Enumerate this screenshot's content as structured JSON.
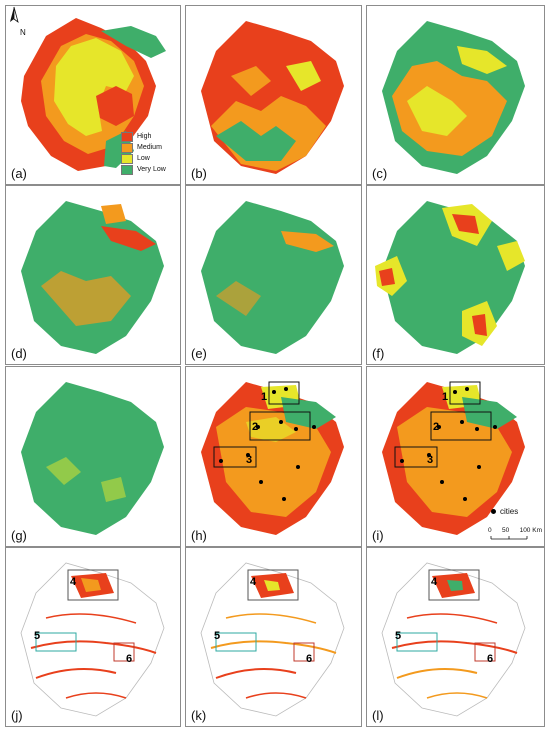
{
  "panels": [
    {
      "id": "a",
      "label": "(a)"
    },
    {
      "id": "b",
      "label": "(b)"
    },
    {
      "id": "c",
      "label": "(c)"
    },
    {
      "id": "d",
      "label": "(d)"
    },
    {
      "id": "e",
      "label": "(e)"
    },
    {
      "id": "f",
      "label": "(f)"
    },
    {
      "id": "g",
      "label": "(g)"
    },
    {
      "id": "h",
      "label": "(h)"
    },
    {
      "id": "i",
      "label": "(i)"
    },
    {
      "id": "j",
      "label": "(j)"
    },
    {
      "id": "k",
      "label": "(k)"
    },
    {
      "id": "l",
      "label": "(l)"
    }
  ],
  "legend": {
    "items": [
      {
        "label": "High",
        "color": "#e8401c"
      },
      {
        "label": "Medium",
        "color": "#f39a1e"
      },
      {
        "label": "Low",
        "color": "#e6e62a"
      },
      {
        "label": "Very Low",
        "color": "#3fae6a"
      }
    ]
  },
  "north_arrow": {
    "label": "N"
  },
  "cities_legend": {
    "label": "cities"
  },
  "scale_bar": {
    "ticks": [
      "0",
      "50",
      "100 Km"
    ]
  },
  "boxes": {
    "h": [
      "1",
      "2",
      "3"
    ],
    "i": [
      "1",
      "2",
      "3"
    ],
    "j": [
      "4",
      "5",
      "6"
    ],
    "k": [
      "4",
      "5",
      "6"
    ],
    "l": [
      "4",
      "5",
      "6"
    ]
  },
  "colors": {
    "high": "#e8401c",
    "medium": "#f39a1e",
    "low": "#e6e62a",
    "verylow": "#3fae6a",
    "box_black": "#111111",
    "box_teal": "#2ea8a0",
    "box_red": "#c0392b"
  }
}
